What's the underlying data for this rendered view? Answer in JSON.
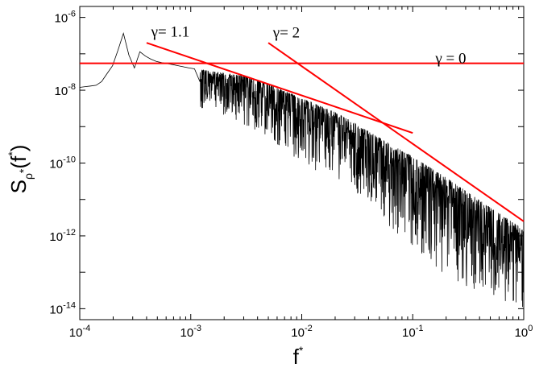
{
  "chart_data": {
    "type": "line",
    "title": "",
    "xlabel": {
      "base": "f",
      "sup": "*"
    },
    "ylabel": {
      "S": "S",
      "sub_rho": "ρ",
      "sub_star": "*",
      "paren_open": "(",
      "f": "f",
      "sup_star": "*",
      "paren_close": ")"
    },
    "xscale": "log",
    "yscale": "log",
    "xlim": [
      0.0001,
      1
    ],
    "ylim": [
      5e-15,
      2e-06
    ],
    "grid": false,
    "x_ticks": [
      {
        "base": "10",
        "exp": "-4",
        "value": 0.0001
      },
      {
        "base": "10",
        "exp": "-3",
        "value": 0.001
      },
      {
        "base": "10",
        "exp": "-2",
        "value": 0.01
      },
      {
        "base": "10",
        "exp": "-1",
        "value": 0.1
      },
      {
        "base": "10",
        "exp": "0",
        "value": 1
      }
    ],
    "y_ticks": [
      {
        "base": "10",
        "exp": "-14",
        "value": 1e-14
      },
      {
        "base": "10",
        "exp": "-12",
        "value": 1e-12
      },
      {
        "base": "10",
        "exp": "-10",
        "value": 1e-10
      },
      {
        "base": "10",
        "exp": "-8",
        "value": 1e-08
      },
      {
        "base": "10",
        "exp": "-6",
        "value": 1e-06
      }
    ],
    "series": [
      {
        "kind": "spectrum",
        "color": "#000000",
        "points": [
          [
            0.0001,
            1.2e-08
          ],
          [
            0.00015,
            1.4e-08
          ],
          [
            0.0002,
            5e-08
          ],
          [
            0.00025,
            4e-07
          ],
          [
            0.0003,
            3e-08
          ],
          [
            0.00035,
            1.2e-07
          ],
          [
            0.0004,
            8e-08
          ],
          [
            0.0005,
            6e-08
          ],
          [
            0.0007,
            5e-08
          ],
          [
            0.001,
            4e-08
          ],
          [
            0.002,
            3e-08
          ],
          [
            0.003,
            2.5e-08
          ],
          [
            0.005,
            1.5e-08
          ],
          [
            0.01,
            6e-09
          ],
          [
            0.02,
            2.5e-09
          ],
          [
            0.05,
            5e-10
          ],
          [
            0.1,
            1.5e-10
          ],
          [
            0.2,
            4e-11
          ],
          [
            0.5,
            6e-12
          ],
          [
            1,
            1.5e-12
          ]
        ],
        "noise_floor_points": [
          [
            0.001,
            4e-09
          ],
          [
            0.002,
            2e-09
          ],
          [
            0.005,
            5e-10
          ],
          [
            0.01,
            1e-10
          ],
          [
            0.02,
            3e-11
          ],
          [
            0.05,
            3e-12
          ],
          [
            0.1,
            5e-13
          ],
          [
            0.2,
            8e-14
          ],
          [
            0.5,
            2e-14
          ],
          [
            1,
            1e-14
          ]
        ]
      }
    ],
    "fit_lines": [
      {
        "label": "γ = 0",
        "gamma": 0,
        "color": "#ff0000",
        "points": [
          [
            0.0001,
            5.5e-08
          ],
          [
            1,
            5.5e-08
          ]
        ]
      },
      {
        "label": "γ= 1.1",
        "gamma": 1.1,
        "color": "#ff0000",
        "points": [
          [
            0.0004,
            2e-07
          ],
          [
            0.1,
            6.7e-10
          ]
        ]
      },
      {
        "label": "γ= 2",
        "gamma": 2,
        "color": "#ff0000",
        "points": [
          [
            0.005,
            2e-07
          ],
          [
            1,
            2.5e-12
          ]
        ]
      }
    ],
    "annotations": [
      {
        "text": "γ= 1.1",
        "x": 0.00044,
        "y": 3e-07
      },
      {
        "text": "γ= 2",
        "x": 0.0055,
        "y": 2.8e-07
      },
      {
        "text": "γ = 0",
        "x": 0.16,
        "y": 5.5e-08
      }
    ]
  }
}
